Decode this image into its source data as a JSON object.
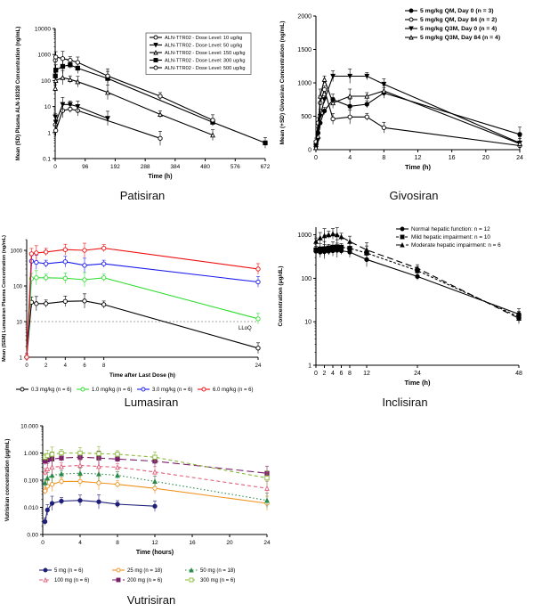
{
  "captions": [
    "Patisiran",
    "Givosiran",
    "Lumasiran",
    "Inclisiran",
    "Vutrisiran"
  ],
  "chart_data": [
    {
      "type": "line",
      "caption": "Patisiran",
      "xlabel": "Time (h)",
      "ylabel": "Mean (SD) Plasma ALN-18328 Concentration (ng/mL)",
      "yscale": "log",
      "xlim": [
        0,
        672
      ],
      "ylim": [
        0.1,
        10000
      ],
      "xticks": [
        0,
        96,
        192,
        288,
        384,
        480,
        576,
        672
      ],
      "yticks": [
        0.1,
        1,
        10,
        100,
        1000,
        10000
      ],
      "ytick_labels": [
        "0.1",
        "1",
        "10",
        "100",
        "1000",
        "10000"
      ],
      "legend_position": "top-right",
      "series": [
        {
          "name": "ALN-TTR02 - Dose Level: 10 ug/kg",
          "marker": "open-circle",
          "x": [
            0.5,
            2,
            24,
            48,
            72,
            336
          ],
          "y": [
            2,
            1.2,
            7,
            8,
            7,
            0.6
          ]
        },
        {
          "name": "ALN-TTR02 - Dose Level: 50 ug/kg",
          "marker": "filled-triangle-down",
          "x": [
            0.5,
            2,
            24,
            48,
            72,
            168
          ],
          "y": [
            4,
            2.5,
            12,
            12,
            10,
            3.5
          ]
        },
        {
          "name": "ALN-TTR02 - Dose Level: 150 ug/kg",
          "marker": "open-triangle-up",
          "x": [
            0.5,
            2,
            24,
            48,
            72,
            168,
            336,
            504
          ],
          "y": [
            50,
            100,
            130,
            110,
            90,
            35,
            5,
            0.8
          ]
        },
        {
          "name": "ALN-TTR02 - Dose Level: 300 ug/kg",
          "marker": "filled-square",
          "x": [
            0.5,
            2,
            24,
            48,
            72,
            168,
            504,
            672
          ],
          "y": [
            150,
            250,
            350,
            400,
            300,
            120,
            2.5,
            0.4
          ]
        },
        {
          "name": "ALN-TTR02 - Dose Level: 500 ug/kg",
          "marker": "open-circle",
          "x": [
            0.5,
            2,
            24,
            48,
            72,
            168,
            336,
            504
          ],
          "y": [
            600,
            800,
            700,
            600,
            500,
            150,
            25,
            3
          ]
        }
      ]
    },
    {
      "type": "line",
      "caption": "Givosiran",
      "xlabel": "Time (h)",
      "ylabel": "Mean (+SD) Givosiran Concentration (ng/mL)",
      "xlim": [
        0,
        24
      ],
      "ylim": [
        0,
        2000
      ],
      "xticks": [
        0,
        4,
        8,
        12,
        16,
        20,
        24
      ],
      "yticks": [
        0,
        500,
        1000,
        1500,
        2000
      ],
      "legend_position": "top-right",
      "series": [
        {
          "name": "5 mg/kg QM, Day 0 (n = 3)",
          "marker": "filled-circle",
          "x": [
            0,
            0.25,
            0.5,
            1,
            2,
            4,
            6,
            8,
            24
          ],
          "y": [
            80,
            250,
            400,
            580,
            750,
            650,
            680,
            850,
            230
          ]
        },
        {
          "name": "5 mg/kg QM, Day 84 (n = 2)",
          "marker": "open-circle",
          "x": [
            0,
            0.25,
            0.5,
            1,
            2,
            4,
            6,
            8,
            24
          ],
          "y": [
            120,
            400,
            700,
            900,
            460,
            490,
            490,
            330,
            60
          ]
        },
        {
          "name": "5 mg/kg Q3M, Day 0 (n = 4)",
          "marker": "filled-triangle-down",
          "x": [
            0,
            0.25,
            0.5,
            1,
            2,
            4,
            6,
            8,
            24
          ],
          "y": [
            20,
            150,
            500,
            750,
            1100,
            1100,
            1100,
            980,
            100
          ]
        },
        {
          "name": "5 mg/kg Q3M, Day 84 (n = 4)",
          "marker": "open-triangle-up",
          "x": [
            0,
            0.25,
            0.5,
            1,
            2,
            4,
            6,
            8,
            24
          ],
          "y": [
            30,
            200,
            800,
            1050,
            700,
            800,
            800,
            880,
            90
          ]
        }
      ]
    },
    {
      "type": "line",
      "caption": "Lumasiran",
      "xlabel": "Time after Last Dose (h)",
      "ylabel": "Mean (SEM) Lumasiran Plasma Concentration (ng/mL)",
      "yscale": "log",
      "xlim": [
        0,
        24
      ],
      "ylim": [
        1,
        2000
      ],
      "xticks": [
        0,
        2,
        4,
        6,
        8,
        24
      ],
      "yticks": [
        1,
        10,
        100,
        1000
      ],
      "ytick_labels": [
        "1",
        "10",
        "100",
        "1000"
      ],
      "annotation": "LLoQ",
      "lloq": 10,
      "legend_position": "bottom",
      "series": [
        {
          "name": "0.3 mg/kg (n = 6)",
          "color": "#000000",
          "x": [
            0,
            0.5,
            1,
            2,
            4,
            6,
            8,
            24
          ],
          "y": [
            1,
            35,
            32,
            32,
            37,
            38,
            30,
            1.8
          ]
        },
        {
          "name": "1.0 mg/kg (n = 6)",
          "color": "#33dd33",
          "x": [
            0,
            0.5,
            1,
            2,
            4,
            6,
            8,
            24
          ],
          "y": [
            1,
            160,
            170,
            170,
            165,
            150,
            170,
            12
          ]
        },
        {
          "name": "3.0 mg/kg (n = 6)",
          "color": "#1a1aee",
          "x": [
            0,
            0.5,
            1,
            2,
            4,
            6,
            8,
            24
          ],
          "y": [
            1,
            500,
            460,
            420,
            480,
            380,
            420,
            130
          ]
        },
        {
          "name": "6.0 mg/kg (n = 6)",
          "color": "#ee1111",
          "x": [
            0,
            0.5,
            1,
            2,
            4,
            6,
            8,
            24
          ],
          "y": [
            1,
            800,
            850,
            900,
            1050,
            1000,
            1150,
            300
          ]
        }
      ]
    },
    {
      "type": "line",
      "caption": "Inclisiran",
      "xlabel": "Time (h)",
      "ylabel": "Concentration (μg/dL)",
      "yscale": "log",
      "xlim": [
        0,
        48
      ],
      "ylim": [
        1,
        1500
      ],
      "xticks": [
        0,
        2,
        4,
        6,
        8,
        12,
        24,
        48
      ],
      "yticks": [
        1,
        10,
        100,
        1000
      ],
      "ytick_labels": [
        "1",
        "10",
        "100",
        "1000"
      ],
      "legend_position": "top-right",
      "series": [
        {
          "name": "Normal hepatic function: n = 12",
          "marker": "filled-circle",
          "dash": "solid",
          "x": [
            0,
            1,
            2,
            3,
            4,
            5,
            6,
            8,
            12,
            24,
            48
          ],
          "y": [
            420,
            400,
            410,
            420,
            430,
            440,
            430,
            400,
            270,
            110,
            15
          ]
        },
        {
          "name": "Mild hepatic impairment: n = 10",
          "marker": "filled-square",
          "dash": "short",
          "x": [
            0,
            1,
            2,
            3,
            4,
            5,
            6,
            8,
            12,
            24,
            48
          ],
          "y": [
            450,
            470,
            480,
            500,
            520,
            530,
            520,
            490,
            380,
            150,
            13
          ]
        },
        {
          "name": "Moderate hepatic impairment: n = 6",
          "marker": "filled-triangle-up",
          "dash": "long",
          "x": [
            0,
            1,
            2,
            3,
            4,
            5,
            6,
            8,
            12,
            24,
            48
          ],
          "y": [
            700,
            850,
            950,
            1000,
            1050,
            1000,
            900,
            700,
            450,
            170,
            12
          ]
        }
      ]
    },
    {
      "type": "line",
      "caption": "Vutrisiran",
      "xlabel": "Time (hours)",
      "ylabel": "Vutrisiran concentration (μg/mL)",
      "yscale": "log",
      "xlim": [
        0,
        24
      ],
      "ylim": [
        0.001,
        10
      ],
      "xticks": [
        0,
        4,
        8,
        12,
        16,
        20,
        24
      ],
      "yticks": [
        0.001,
        0.01,
        0.1,
        1,
        10
      ],
      "ytick_labels": [
        "0.00",
        "0.010",
        "0.100",
        "1.000",
        "10.000"
      ],
      "legend_position": "bottom",
      "series": [
        {
          "name": "5 mg (n = 6)",
          "marker": "filled-circle",
          "color": "#1f1f7a",
          "dash": "solid",
          "x": [
            0.25,
            0.5,
            1,
            2,
            4,
            6,
            8,
            12
          ],
          "y": [
            0.003,
            0.008,
            0.014,
            0.017,
            0.018,
            0.016,
            0.013,
            0.011
          ]
        },
        {
          "name": "25 mg (n = 18)",
          "marker": "open-circle",
          "color": "#f0921e",
          "dash": "solid",
          "x": [
            0.25,
            0.5,
            1,
            2,
            4,
            6,
            8,
            12,
            24
          ],
          "y": [
            0.04,
            0.06,
            0.07,
            0.09,
            0.09,
            0.08,
            0.07,
            0.05,
            0.014
          ]
        },
        {
          "name": "50 mg (n = 18)",
          "marker": "filled-triangle-up",
          "color": "#2a8a4a",
          "dash": "dotted",
          "x": [
            0.25,
            0.5,
            1,
            2,
            4,
            6,
            8,
            12,
            24
          ],
          "y": [
            0.08,
            0.12,
            0.15,
            0.17,
            0.18,
            0.17,
            0.15,
            0.09,
            0.018
          ]
        },
        {
          "name": "100 mg (n = 6)",
          "marker": "open-triangle-up",
          "color": "#e0607a",
          "dash": "dashed",
          "x": [
            0.25,
            0.5,
            1,
            2,
            4,
            6,
            8,
            12,
            24
          ],
          "y": [
            0.2,
            0.26,
            0.3,
            0.32,
            0.35,
            0.32,
            0.3,
            0.2,
            0.05
          ]
        },
        {
          "name": "200 mg (n = 6)",
          "marker": "filled-square",
          "color": "#7a1f6a",
          "dash": "long-dash",
          "x": [
            0.25,
            0.5,
            1,
            2,
            4,
            6,
            8,
            12,
            24
          ],
          "y": [
            0.5,
            0.55,
            0.6,
            0.65,
            0.7,
            0.65,
            0.6,
            0.5,
            0.18
          ]
        },
        {
          "name": "300 mg (n = 6)",
          "marker": "open-square",
          "color": "#8ab83a",
          "dash": "dashed",
          "x": [
            0.25,
            0.5,
            1,
            2,
            4,
            6,
            8,
            12,
            24
          ],
          "y": [
            0.7,
            0.8,
            0.9,
            1.0,
            1.0,
            0.95,
            0.9,
            0.7,
            0.12
          ]
        }
      ]
    }
  ]
}
